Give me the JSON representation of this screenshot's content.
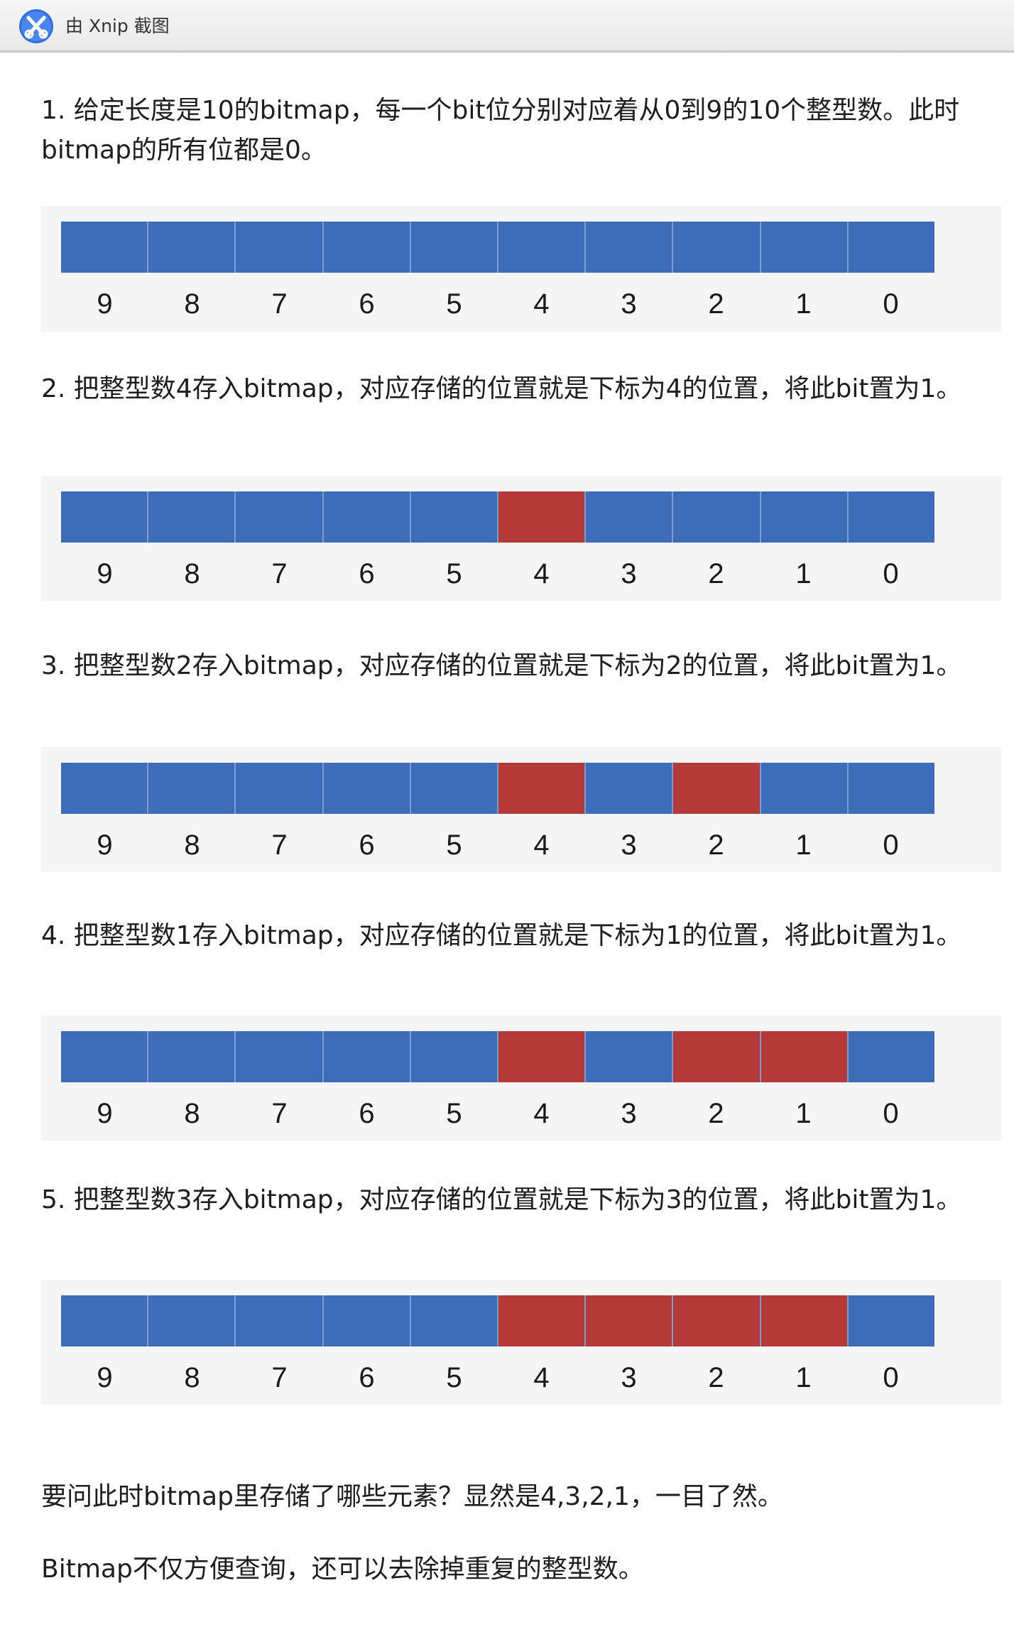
{
  "titlebar": {
    "icon": "xnip-scissors-icon",
    "text": "由 Xnip 截图"
  },
  "colors": {
    "bit_off": "#3d6db8",
    "bit_on": "#b43a3a"
  },
  "steps": [
    {
      "text": "1. 给定长度是10的bitmap，每一个bit位分别对应着从0到9的10个整型数。此时bitmap的所有位都是0。",
      "bitmap": {
        "indices": [
          "9",
          "8",
          "7",
          "6",
          "5",
          "4",
          "3",
          "2",
          "1",
          "0"
        ],
        "set_bits": []
      }
    },
    {
      "text": "2. 把整型数4存入bitmap，对应存储的位置就是下标为4的位置，将此bit置为1。",
      "bitmap": {
        "indices": [
          "9",
          "8",
          "7",
          "6",
          "5",
          "4",
          "3",
          "2",
          "1",
          "0"
        ],
        "set_bits": [
          "4"
        ]
      }
    },
    {
      "text": "3. 把整型数2存入bitmap，对应存储的位置就是下标为2的位置，将此bit置为1。",
      "bitmap": {
        "indices": [
          "9",
          "8",
          "7",
          "6",
          "5",
          "4",
          "3",
          "2",
          "1",
          "0"
        ],
        "set_bits": [
          "4",
          "2"
        ]
      }
    },
    {
      "text": "4. 把整型数1存入bitmap，对应存储的位置就是下标为1的位置，将此bit置为1。",
      "bitmap": {
        "indices": [
          "9",
          "8",
          "7",
          "6",
          "5",
          "4",
          "3",
          "2",
          "1",
          "0"
        ],
        "set_bits": [
          "4",
          "2",
          "1"
        ]
      }
    },
    {
      "text": "5. 把整型数3存入bitmap，对应存储的位置就是下标为3的位置，将此bit置为1。",
      "bitmap": {
        "indices": [
          "9",
          "8",
          "7",
          "6",
          "5",
          "4",
          "3",
          "2",
          "1",
          "0"
        ],
        "set_bits": [
          "4",
          "3",
          "2",
          "1"
        ]
      }
    }
  ],
  "conclusion": [
    "要问此时bitmap里存储了哪些元素？显然是4,3,2,1，一目了然。",
    "Bitmap不仅方便查询，还可以去除掉重复的整型数。"
  ]
}
